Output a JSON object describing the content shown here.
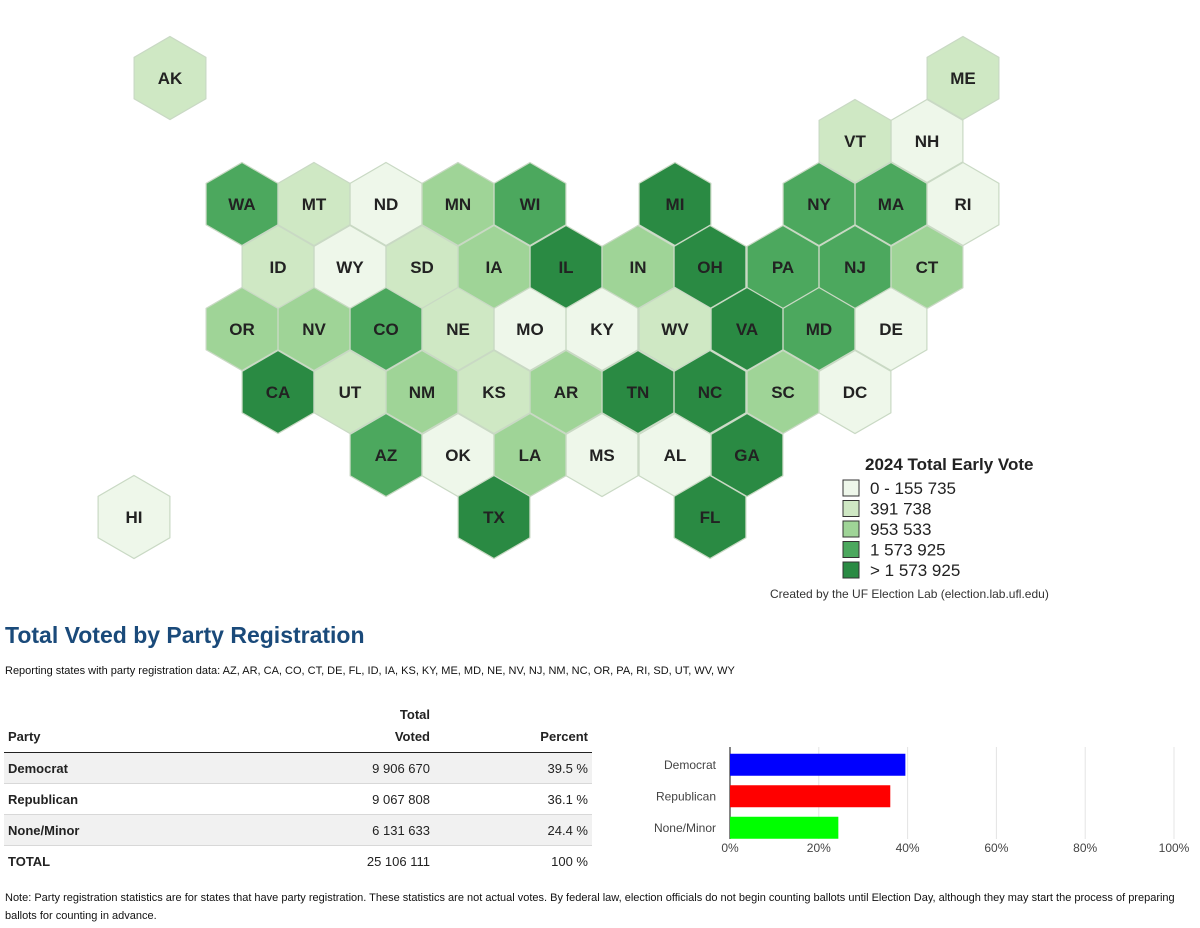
{
  "map": {
    "states": [
      {
        "code": "AK",
        "bin": 1
      },
      {
        "code": "ME",
        "bin": 1
      },
      {
        "code": "VT",
        "bin": 1
      },
      {
        "code": "NH",
        "bin": 0
      },
      {
        "code": "WA",
        "bin": 3
      },
      {
        "code": "MT",
        "bin": 1
      },
      {
        "code": "ND",
        "bin": 0
      },
      {
        "code": "MN",
        "bin": 2
      },
      {
        "code": "WI",
        "bin": 3
      },
      {
        "code": "MI",
        "bin": 4
      },
      {
        "code": "NY",
        "bin": 3
      },
      {
        "code": "MA",
        "bin": 3
      },
      {
        "code": "RI",
        "bin": 0
      },
      {
        "code": "ID",
        "bin": 1
      },
      {
        "code": "WY",
        "bin": 0
      },
      {
        "code": "SD",
        "bin": 1
      },
      {
        "code": "IA",
        "bin": 2
      },
      {
        "code": "IL",
        "bin": 4
      },
      {
        "code": "IN",
        "bin": 2
      },
      {
        "code": "OH",
        "bin": 4
      },
      {
        "code": "PA",
        "bin": 3
      },
      {
        "code": "NJ",
        "bin": 3
      },
      {
        "code": "CT",
        "bin": 2
      },
      {
        "code": "OR",
        "bin": 2
      },
      {
        "code": "NV",
        "bin": 2
      },
      {
        "code": "CO",
        "bin": 3
      },
      {
        "code": "NE",
        "bin": 1
      },
      {
        "code": "MO",
        "bin": 0
      },
      {
        "code": "KY",
        "bin": 0
      },
      {
        "code": "WV",
        "bin": 1
      },
      {
        "code": "VA",
        "bin": 4
      },
      {
        "code": "MD",
        "bin": 3
      },
      {
        "code": "DE",
        "bin": 0
      },
      {
        "code": "CA",
        "bin": 4
      },
      {
        "code": "UT",
        "bin": 1
      },
      {
        "code": "NM",
        "bin": 2
      },
      {
        "code": "KS",
        "bin": 1
      },
      {
        "code": "AR",
        "bin": 2
      },
      {
        "code": "TN",
        "bin": 4
      },
      {
        "code": "NC",
        "bin": 4
      },
      {
        "code": "SC",
        "bin": 2
      },
      {
        "code": "DC",
        "bin": 0
      },
      {
        "code": "AZ",
        "bin": 3
      },
      {
        "code": "OK",
        "bin": 0
      },
      {
        "code": "LA",
        "bin": 2
      },
      {
        "code": "MS",
        "bin": 0
      },
      {
        "code": "AL",
        "bin": 0
      },
      {
        "code": "GA",
        "bin": 4
      },
      {
        "code": "TX",
        "bin": 4
      },
      {
        "code": "FL",
        "bin": 4
      },
      {
        "code": "HI",
        "bin": 0
      }
    ],
    "bin_colors": [
      "#eef7ea",
      "#cfe8c4",
      "#9fd497",
      "#4ca85e",
      "#2a8a43"
    ],
    "legend": {
      "title": "2024 Total Early Vote",
      "items": [
        "0 - 155 735",
        "391 738",
        "953 533",
        "1 573 925",
        "> 1 573 925"
      ]
    },
    "credit": "Created by the UF Election Lab (election.lab.ufl.edu)"
  },
  "party": {
    "title": "Total Voted by Party Registration",
    "reporting": "Reporting states with party registration data: AZ, AR, CA, CO, CT, DE, FL, ID, IA, KS, KY, ME, MD, NE, NV, NJ, NM, NC, OR, PA, RI, SD, UT, WV, WY",
    "headers": {
      "party": "Party",
      "total_voted": "Total\nVoted",
      "percent": "Percent"
    },
    "rows": [
      {
        "party": "Democrat",
        "voted": "9 906 670",
        "percent": "39.5 %"
      },
      {
        "party": "Republican",
        "voted": "9 067 808",
        "percent": "36.1 %"
      },
      {
        "party": "None/Minor",
        "voted": "6 131 633",
        "percent": "24.4 %"
      }
    ],
    "total": {
      "label": "TOTAL",
      "voted": "25 106 111",
      "percent": "100 %"
    },
    "note": "Note: Party registration statistics are for states that have party registration. These statistics are not actual votes. By federal law, election officials do not begin counting ballots until Election Day, although they may start the process of preparing ballots for counting in advance."
  },
  "chart_data": {
    "type": "bar",
    "orientation": "horizontal",
    "categories": [
      "Democrat",
      "Republican",
      "None/Minor"
    ],
    "values": [
      39.5,
      36.1,
      24.4
    ],
    "colors": [
      "#0000ff",
      "#ff0000",
      "#00ff00"
    ],
    "xlim": [
      0,
      100
    ],
    "xticks": [
      0,
      20,
      40,
      60,
      80,
      100
    ],
    "xtick_labels": [
      "0%",
      "20%",
      "40%",
      "60%",
      "80%",
      "100%"
    ],
    "title": "",
    "xlabel": "",
    "ylabel": ""
  }
}
